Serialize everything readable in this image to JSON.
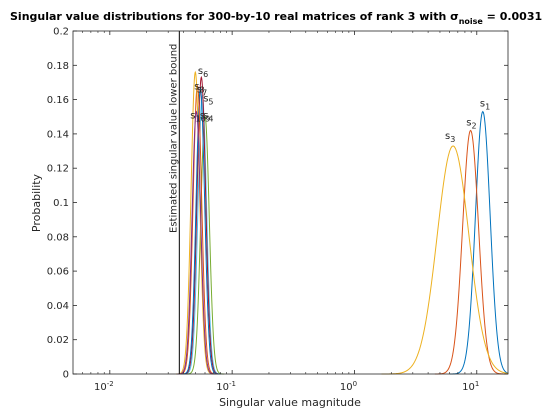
{
  "chart_data": {
    "type": "line",
    "title": "Singular value distributions for 300-by-10 real matrices of rank 3 with σ",
    "title_subscript": "noise",
    "title_suffix": " = 0.0031",
    "xlabel": "Singular value magnitude",
    "ylabel": "Probability",
    "xscale": "log",
    "xlim": [
      0.005,
      18
    ],
    "ylim": [
      0,
      0.2
    ],
    "xticks": [
      0.01,
      0.1,
      1,
      10
    ],
    "xtick_labels": [
      {
        "base": "10",
        "exp": "-2"
      },
      {
        "base": "10",
        "exp": "-1"
      },
      {
        "base": "10",
        "exp": "0"
      },
      {
        "base": "10",
        "exp": "1"
      }
    ],
    "yticks": [
      0,
      0.02,
      0.04,
      0.06,
      0.08,
      0.1,
      0.12,
      0.14,
      0.16,
      0.18,
      0.2
    ],
    "ytick_labels": [
      "0",
      "0.02",
      "0.04",
      "0.06",
      "0.08",
      "0.1",
      "0.12",
      "0.14",
      "0.16",
      "0.18",
      "0.2"
    ],
    "grid": false,
    "annotation": {
      "text": "Estimated singular value lower bound",
      "x": 0.037
    },
    "series": [
      {
        "label": "s",
        "sub": "1",
        "color": "#0072BD",
        "center": 11.2,
        "width": 0.06,
        "peak": 0.153,
        "label_x": 10.6,
        "label_y": 0.156
      },
      {
        "label": "s",
        "sub": "2",
        "color": "#D95319",
        "center": 8.9,
        "width": 0.065,
        "peak": 0.142,
        "label_x": 8.2,
        "label_y": 0.145
      },
      {
        "label": "s",
        "sub": "3",
        "color": "#EDB120",
        "center": 6.4,
        "width": 0.13,
        "peak": 0.133,
        "label_x": 5.5,
        "label_y": 0.137
      },
      {
        "label": "s",
        "sub": "4",
        "color": "#77AC30",
        "center": 0.06,
        "width": 0.035,
        "peak": 0.15,
        "label_x": 0.058,
        "label_y": 0.149
      },
      {
        "label": "s",
        "sub": "5",
        "color": "#4DBEEE",
        "center": 0.057,
        "width": 0.035,
        "peak": 0.162,
        "label_x": 0.058,
        "label_y": 0.159
      },
      {
        "label": "s",
        "sub": "6",
        "color": "#A2142F",
        "center": 0.056,
        "width": 0.035,
        "peak": 0.173,
        "label_x": 0.0525,
        "label_y": 0.175
      },
      {
        "label": "s",
        "sub": "7",
        "color": "#0072BD",
        "center": 0.055,
        "width": 0.035,
        "peak": 0.166,
        "label_x": 0.0515,
        "label_y": 0.164
      },
      {
        "label": "s",
        "sub": "8",
        "color": "#D95319",
        "center": 0.052,
        "width": 0.035,
        "peak": 0.168,
        "label_x": 0.049,
        "label_y": 0.166
      },
      {
        "label": "s",
        "sub": "9",
        "color": "#EDB120",
        "center": 0.05,
        "width": 0.035,
        "peak": 0.176,
        "label_x": 0.0545,
        "label_y": 0.149
      },
      {
        "label": "s",
        "sub": "10",
        "color": "#7E2F8E",
        "center": 0.051,
        "width": 0.035,
        "peak": 0.153,
        "label_x": 0.0455,
        "label_y": 0.149
      }
    ]
  }
}
